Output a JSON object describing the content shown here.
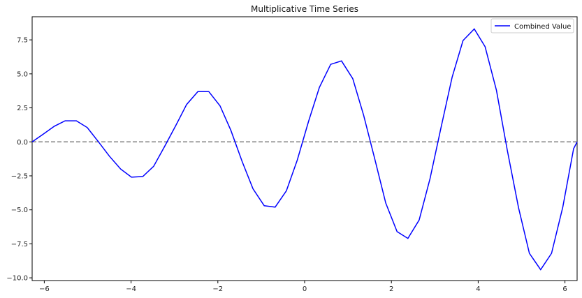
{
  "chart_data": {
    "type": "line",
    "title": "Multiplicative Time Series",
    "xlabel": "",
    "ylabel": "",
    "xlim": [
      -6.28,
      6.28
    ],
    "ylim": [
      -10.2,
      9.2
    ],
    "x_ticks": [
      -6,
      -4,
      -2,
      0,
      2,
      4,
      6
    ],
    "x_tick_labels": [
      "−6",
      "−4",
      "−2",
      "0",
      "2",
      "4",
      "6"
    ],
    "y_ticks": [
      -10,
      -7.5,
      -5,
      -2.5,
      0,
      2.5,
      5,
      7.5
    ],
    "y_tick_labels": [
      "−10.0",
      "−7.5",
      "−5.0",
      "−2.5",
      "0.0",
      "2.5",
      "5.0",
      "7.5"
    ],
    "grid": false,
    "legend": {
      "position": "top-right",
      "entries": [
        "Combined Value"
      ]
    },
    "reference_line": {
      "y": 0,
      "style": "dashed",
      "color": "#808080"
    },
    "series": [
      {
        "name": "Combined Value",
        "color": "#0000ff",
        "x": [
          -6.28,
          -6.03,
          -5.77,
          -5.52,
          -5.26,
          -5.01,
          -4.75,
          -4.5,
          -4.24,
          -3.99,
          -3.73,
          -3.48,
          -3.22,
          -2.97,
          -2.72,
          -2.46,
          -2.21,
          -1.95,
          -1.7,
          -1.44,
          -1.19,
          -0.93,
          -0.68,
          -0.42,
          -0.17,
          0.09,
          0.34,
          0.6,
          0.85,
          1.11,
          1.36,
          1.62,
          1.87,
          2.13,
          2.38,
          2.64,
          2.89,
          3.14,
          3.4,
          3.65,
          3.91,
          4.16,
          4.42,
          4.67,
          4.93,
          5.18,
          5.44,
          5.69,
          5.95,
          6.2,
          6.28
        ],
        "values": [
          0.0,
          0.55,
          1.15,
          1.55,
          1.55,
          1.05,
          0.0,
          -1.05,
          -2.0,
          -2.6,
          -2.55,
          -1.8,
          -0.3,
          1.2,
          2.75,
          3.7,
          3.7,
          2.65,
          0.85,
          -1.45,
          -3.45,
          -4.7,
          -4.8,
          -3.6,
          -1.35,
          1.5,
          4.0,
          5.7,
          5.95,
          4.65,
          1.95,
          -1.3,
          -4.5,
          -6.6,
          -7.1,
          -5.75,
          -2.7,
          1.0,
          4.75,
          7.45,
          8.3,
          7.0,
          3.8,
          -0.6,
          -4.85,
          -8.2,
          -9.4,
          -8.2,
          -4.8,
          -0.5,
          0.0
        ]
      }
    ]
  }
}
